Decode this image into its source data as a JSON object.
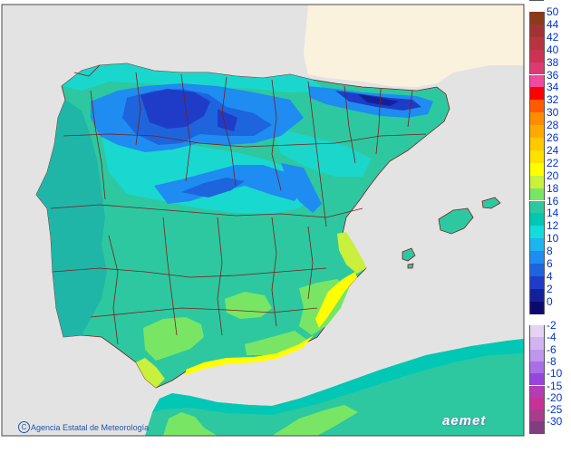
{
  "legend": {
    "positive": [
      {
        "label": "50",
        "color": "#8b3a1a"
      },
      {
        "label": "44",
        "color": "#a23333"
      },
      {
        "label": "42",
        "color": "#b8343e"
      },
      {
        "label": "40",
        "color": "#cc3352"
      },
      {
        "label": "38",
        "color": "#de3a72"
      },
      {
        "label": "36",
        "color": "#f04aa0"
      },
      {
        "label": "34",
        "color": "#ff0000"
      },
      {
        "label": "32",
        "color": "#ff5a00"
      },
      {
        "label": "30",
        "color": "#ff8c00"
      },
      {
        "label": "28",
        "color": "#ffaa00"
      },
      {
        "label": "26",
        "color": "#ffc800"
      },
      {
        "label": "24",
        "color": "#ffe100"
      },
      {
        "label": "22",
        "color": "#ffff00"
      },
      {
        "label": "20",
        "color": "#c8f03c"
      },
      {
        "label": "18",
        "color": "#78e664"
      },
      {
        "label": "16",
        "color": "#2dc8a0"
      },
      {
        "label": "14",
        "color": "#00c8b4"
      },
      {
        "label": "12",
        "color": "#14dcdc"
      },
      {
        "label": "10",
        "color": "#1eb4f0"
      },
      {
        "label": "8",
        "color": "#1e8cf0"
      },
      {
        "label": "6",
        "color": "#1e64dc"
      },
      {
        "label": "4",
        "color": "#1e3cc8"
      },
      {
        "label": "2",
        "color": "#14209a"
      },
      {
        "label": "0",
        "color": "#0a0a6e"
      }
    ],
    "negative": [
      {
        "label": "-2",
        "color": "#e6d2f5"
      },
      {
        "label": "-4",
        "color": "#d2b4f0"
      },
      {
        "label": "-6",
        "color": "#be96eb"
      },
      {
        "label": "-8",
        "color": "#aa6ee6"
      },
      {
        "label": "-10",
        "color": "#9646dc"
      },
      {
        "label": "-15",
        "color": "#b43cb4"
      },
      {
        "label": "-20",
        "color": "#c83296"
      },
      {
        "label": "-25",
        "color": "#aa3c8c"
      },
      {
        "label": "-30",
        "color": "#823c82"
      }
    ]
  },
  "credit": "Agencia Estatal de Meteorología",
  "logo": "aemet",
  "colors": {
    "sea": "#e6e6e6",
    "foreign_land": "#fff4dc",
    "border_lines": "#7a1e1e"
  }
}
